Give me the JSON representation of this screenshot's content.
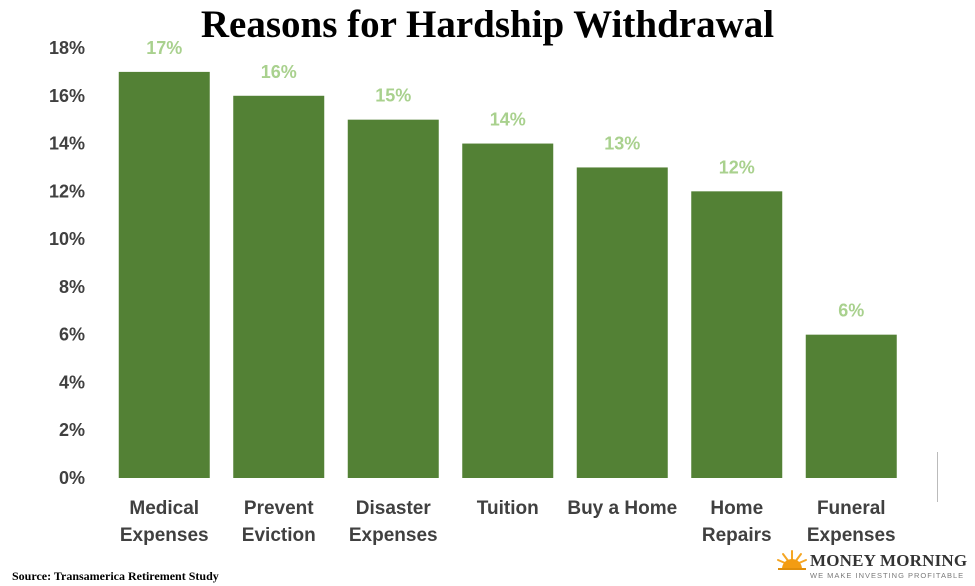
{
  "chart_data": {
    "type": "bar",
    "title": "Reasons for Hardship Withdrawal",
    "categories": [
      [
        "Medical",
        "Expenses"
      ],
      [
        "Prevent",
        "Eviction"
      ],
      [
        "Disaster",
        "Expenses"
      ],
      [
        "Tuition"
      ],
      [
        "Buy a Home"
      ],
      [
        "Home",
        "Repairs"
      ],
      [
        "Funeral",
        "Expenses"
      ]
    ],
    "values": [
      17,
      16,
      15,
      14,
      13,
      12,
      6
    ],
    "data_labels": [
      "17%",
      "16%",
      "15%",
      "14%",
      "13%",
      "12%",
      "6%"
    ],
    "y_ticks": [
      "0%",
      "2%",
      "4%",
      "6%",
      "8%",
      "10%",
      "12%",
      "14%",
      "16%",
      "18%"
    ],
    "ylim": [
      0,
      18
    ],
    "grid": false,
    "legend": "none",
    "colors": {
      "bar": "#538135",
      "data_label": "#a9d18e",
      "axis_text": "#404040"
    }
  },
  "source": "Source: Transamerica Retirement Study",
  "logo": {
    "name": "MONEY MORNING",
    "tagline": "WE MAKE INVESTING PROFITABLE",
    "icon": "sun-icon"
  }
}
